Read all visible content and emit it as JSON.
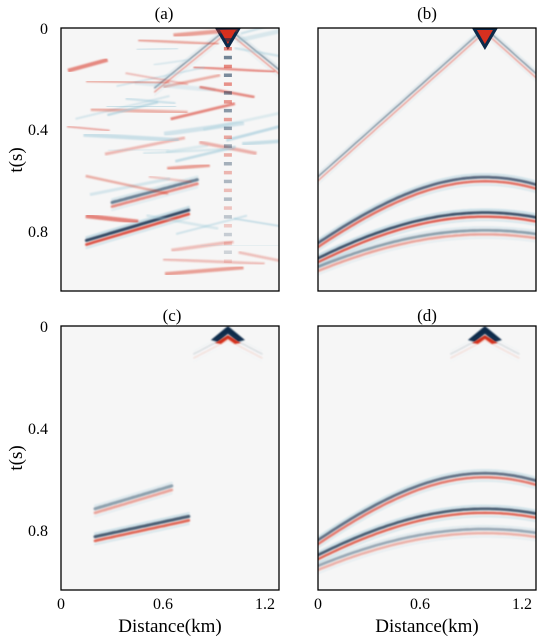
{
  "colors": {
    "positive": "#d7301f",
    "negative": "#0b2a4a",
    "negative_soft": "#9cc8d8",
    "background": "#f6f6f6"
  },
  "chart_data": {
    "type": "heatmap",
    "colormap": "diverging red-white-blue seismic amplitude",
    "shared_xlabel": "Distance(km)",
    "shared_ylabel": "t(s)",
    "xlim": [
      0,
      1.28
    ],
    "ylim": [
      0,
      1.04
    ],
    "y_inverted": true,
    "x_ticks": [
      0,
      0.6,
      1.2
    ],
    "x_tick_labels": [
      "0",
      "0.6",
      "1.2"
    ],
    "y_ticks": [
      0,
      0.4,
      0.8
    ],
    "y_tick_labels": [
      "0",
      "0.4",
      "0.8"
    ],
    "panels": [
      {
        "title": "(a)",
        "grid": false,
        "source": {
          "x": 0.98,
          "t": 0.0
        },
        "events": [
          {
            "kind": "direct-wave",
            "apex_x": 0.98,
            "apex_t": 0.0,
            "slope_s_per_km": 0.55,
            "amplitude": 1.0,
            "extent_x": [
              0.55,
              1.28
            ]
          },
          {
            "kind": "reflection",
            "x_range": [
              0.15,
              0.75
            ],
            "t_at_start": 0.84,
            "t_at_end": 0.72,
            "amplitude": 0.9
          },
          {
            "kind": "reflection",
            "x_range": [
              0.3,
              0.8
            ],
            "t_at_start": 0.69,
            "t_at_end": 0.6,
            "amplitude": 0.6
          },
          {
            "kind": "noise",
            "description": "strong oscillatory noise across panel, vertical column near x=0.98 km"
          }
        ]
      },
      {
        "title": "(b)",
        "grid": false,
        "source": {
          "x": 0.98,
          "t": 0.0
        },
        "events": [
          {
            "kind": "direct-wave",
            "apex_x": 0.98,
            "apex_t": 0.0,
            "slope_s_per_km": 0.6,
            "amplitude": 1.0
          },
          {
            "kind": "hyperbola",
            "apex_x": 0.98,
            "apex_t": 0.59,
            "velocity_km_s": 3.2,
            "amplitude": 0.75
          },
          {
            "kind": "hyperbola",
            "apex_x": 0.98,
            "apex_t": 0.73,
            "velocity_km_s": 3.6,
            "amplitude": 0.85
          },
          {
            "kind": "hyperbola",
            "apex_x": 0.98,
            "apex_t": 0.8,
            "velocity_km_s": 3.9,
            "amplitude": 0.45
          }
        ]
      },
      {
        "title": "(c)",
        "grid": false,
        "source": {
          "x": 0.98,
          "t": 0.0
        },
        "events": [
          {
            "kind": "direct-wave-apex",
            "apex_x": 0.98,
            "apex_t": 0.0,
            "amplitude": 1.0
          },
          {
            "kind": "reflection",
            "x_range": [
              0.2,
              0.75
            ],
            "t_at_start": 0.83,
            "t_at_end": 0.75,
            "amplitude": 0.8
          },
          {
            "kind": "reflection",
            "x_range": [
              0.2,
              0.65
            ],
            "t_at_start": 0.72,
            "t_at_end": 0.63,
            "amplitude": 0.45
          }
        ]
      },
      {
        "title": "(d)",
        "grid": false,
        "source": {
          "x": 0.98,
          "t": 0.0
        },
        "events": [
          {
            "kind": "direct-wave-apex",
            "apex_x": 0.98,
            "apex_t": 0.0,
            "amplitude": 1.0
          },
          {
            "kind": "hyperbola",
            "apex_x": 0.98,
            "apex_t": 0.58,
            "velocity_km_s": 3.2,
            "amplitude": 0.7
          },
          {
            "kind": "hyperbola",
            "apex_x": 0.98,
            "apex_t": 0.72,
            "velocity_km_s": 3.6,
            "amplitude": 0.8
          },
          {
            "kind": "hyperbola",
            "apex_x": 0.98,
            "apex_t": 0.8,
            "velocity_km_s": 3.9,
            "amplitude": 0.4
          }
        ]
      }
    ]
  }
}
